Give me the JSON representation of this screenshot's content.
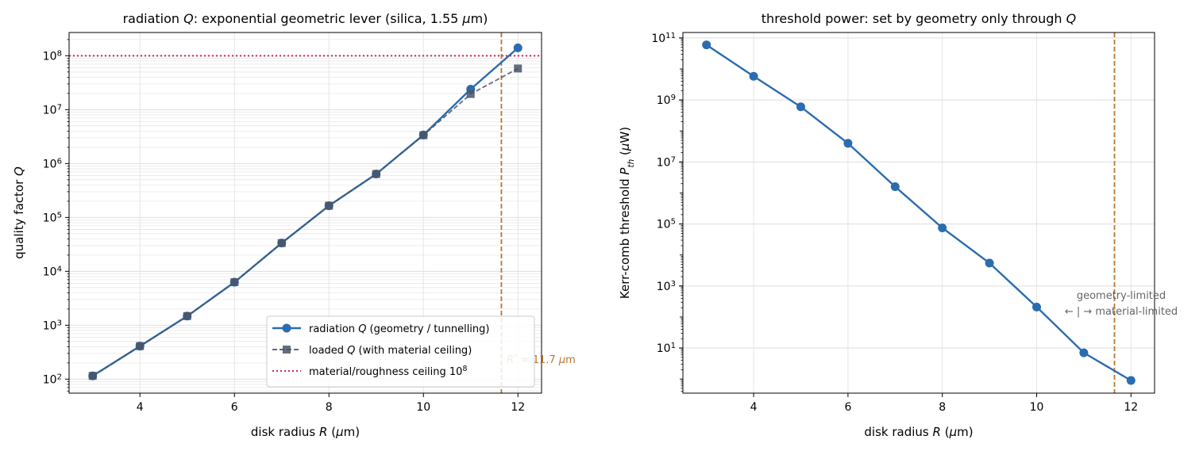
{
  "chart_data": [
    {
      "type": "line",
      "title": "radiation Q: exponential geometric lever (silica, 1.55 µm)",
      "xlabel": "disk radius R (µm)",
      "ylabel": "quality factor Q",
      "x": [
        3,
        4,
        5,
        6,
        7,
        8,
        9,
        10,
        11,
        12
      ],
      "xlim": [
        2.5,
        12.5
      ],
      "xticks": [
        4,
        6,
        8,
        10,
        12
      ],
      "yscale": "log",
      "ylim": [
        55,
        270000000
      ],
      "yticks": [
        {
          "value": 100,
          "base": "10",
          "exp": "2"
        },
        {
          "value": 1000,
          "base": "10",
          "exp": "3"
        },
        {
          "value": 10000,
          "base": "10",
          "exp": "4"
        },
        {
          "value": 100000,
          "base": "10",
          "exp": "5"
        },
        {
          "value": 1000000,
          "base": "10",
          "exp": "6"
        },
        {
          "value": 10000000,
          "base": "10",
          "exp": "7"
        },
        {
          "value": 100000000,
          "base": "10",
          "exp": "8"
        }
      ],
      "grid": true,
      "legend_position": "lower-right",
      "series": [
        {
          "name": "radiation Q (geometry / tunnelling)",
          "color": "#2b6cb0",
          "marker": "circle",
          "linestyle": "solid",
          "values": [
            115,
            410,
            1480,
            6300,
            33500,
            165000,
            640000,
            3400000,
            24000000,
            140000000
          ]
        },
        {
          "name": "loaded Q (with material ceiling)",
          "color": "#4a5568",
          "marker": "square",
          "linestyle": "dashed",
          "values": [
            115,
            410,
            1480,
            6300,
            33500,
            165000,
            640000,
            3350000,
            19500000,
            58000000
          ]
        }
      ],
      "hlines": [
        {
          "name": "material/roughness ceiling 10⁸",
          "value": 100000000,
          "color": "#c8286e",
          "linestyle": "dotted"
        }
      ],
      "vlines": [
        {
          "value": 11.65,
          "color": "#b7792f",
          "linestyle": "dashed",
          "label": "R* ≈ 11.7 µm"
        }
      ]
    },
    {
      "type": "line",
      "title": "threshold power: set by geometry only through Q",
      "xlabel": "disk radius R (µm)",
      "ylabel": "Kerr-comb threshold P_th (µW)",
      "x": [
        3,
        4,
        5,
        6,
        7,
        8,
        9,
        10,
        11,
        12
      ],
      "xlim": [
        2.5,
        12.5
      ],
      "xticks": [
        4,
        6,
        8,
        10,
        12
      ],
      "yscale": "log",
      "ylim": [
        0.35,
        150000000000
      ],
      "yticks": [
        {
          "value": 10,
          "base": "10",
          "exp": "1"
        },
        {
          "value": 1000,
          "base": "10",
          "exp": "3"
        },
        {
          "value": 100000,
          "base": "10",
          "exp": "5"
        },
        {
          "value": 10000000,
          "base": "10",
          "exp": "7"
        },
        {
          "value": 1000000000,
          "base": "10",
          "exp": "9"
        },
        {
          "value": 100000000000,
          "base": "10",
          "exp": "11"
        }
      ],
      "grid": true,
      "series": [
        {
          "name": "",
          "color": "#2b6cb0",
          "marker": "circle",
          "linestyle": "solid",
          "values": [
            60000000000,
            5800000000,
            600000000,
            40000000,
            1600000,
            75000,
            5500,
            210,
            7,
            0.9
          ]
        }
      ],
      "vlines": [
        {
          "value": 11.65,
          "color": "#b7792f",
          "linestyle": "dashed"
        }
      ],
      "annotations": [
        {
          "line1": "geometry-limited",
          "line2": "←  |  →  material-limited",
          "color": "#666666"
        }
      ]
    }
  ]
}
